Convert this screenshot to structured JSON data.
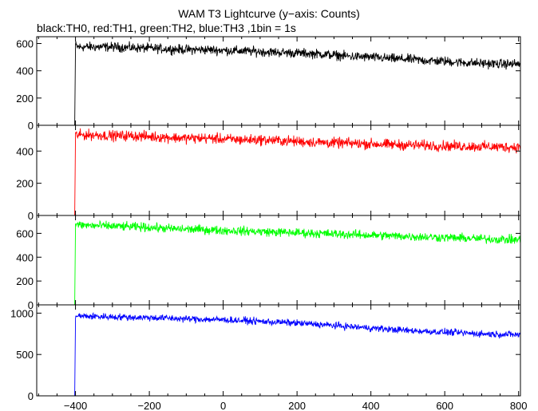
{
  "title": "WAM T3 Lightcurve (y−axis: Counts)",
  "subtitle": "black:TH0, red:TH1, green:TH2, blue:TH3 ,1bin = 1s",
  "chart_data": [
    {
      "type": "line",
      "series": [
        {
          "name": "TH0",
          "color": "#000000",
          "x": [
            -510,
            -402,
            -400,
            -395,
            -350,
            -300,
            -250,
            -200,
            -150,
            -100,
            -50,
            0,
            50,
            100,
            150,
            200,
            250,
            300,
            350,
            400,
            450,
            500,
            550,
            600,
            650,
            700,
            750,
            800
          ],
          "values": [
            0,
            0,
            590,
            575,
            575,
            575,
            570,
            565,
            560,
            555,
            555,
            550,
            545,
            540,
            535,
            530,
            525,
            515,
            505,
            500,
            490,
            485,
            475,
            470,
            460,
            455,
            450,
            450
          ]
        }
      ],
      "xlim": [
        -505,
        805
      ],
      "ylim": [
        0,
        650
      ],
      "yticks": [
        0,
        200,
        400,
        600
      ],
      "noise": 30
    },
    {
      "type": "line",
      "series": [
        {
          "name": "TH1",
          "color": "#ff0000",
          "x": [
            -510,
            -402,
            -400,
            -395,
            -350,
            -300,
            -250,
            -200,
            -150,
            -100,
            -50,
            0,
            50,
            100,
            150,
            200,
            250,
            300,
            350,
            400,
            450,
            500,
            550,
            600,
            650,
            700,
            750,
            800
          ],
          "values": [
            0,
            0,
            500,
            500,
            500,
            495,
            495,
            490,
            485,
            480,
            480,
            475,
            470,
            470,
            465,
            460,
            455,
            450,
            448,
            445,
            440,
            438,
            435,
            432,
            430,
            428,
            425,
            425
          ]
        }
      ],
      "xlim": [
        -505,
        805
      ],
      "ylim": [
        0,
        560
      ],
      "yticks": [
        0,
        200,
        400
      ],
      "noise": 28
    },
    {
      "type": "line",
      "series": [
        {
          "name": "TH2",
          "color": "#00ff00",
          "x": [
            -510,
            -402,
            -400,
            -395,
            -350,
            -300,
            -250,
            -200,
            -150,
            -100,
            -50,
            0,
            50,
            100,
            150,
            200,
            250,
            300,
            350,
            400,
            450,
            500,
            550,
            600,
            650,
            700,
            750,
            800
          ],
          "values": [
            0,
            0,
            680,
            670,
            665,
            660,
            655,
            650,
            640,
            635,
            630,
            625,
            620,
            615,
            610,
            605,
            600,
            595,
            590,
            585,
            580,
            575,
            570,
            565,
            560,
            555,
            550,
            545
          ]
        }
      ],
      "xlim": [
        -505,
        805
      ],
      "ylim": [
        0,
        750
      ],
      "yticks": [
        0,
        200,
        400,
        600
      ],
      "noise": 32
    },
    {
      "type": "line",
      "series": [
        {
          "name": "TH3",
          "color": "#0000ff",
          "x": [
            -510,
            -402,
            -400,
            -395,
            -350,
            -300,
            -250,
            -200,
            -150,
            -100,
            -50,
            0,
            50,
            100,
            150,
            200,
            250,
            300,
            350,
            400,
            450,
            500,
            550,
            600,
            650,
            700,
            750,
            800
          ],
          "values": [
            0,
            0,
            970,
            965,
            960,
            955,
            950,
            945,
            940,
            930,
            925,
            920,
            910,
            900,
            890,
            880,
            865,
            850,
            835,
            820,
            805,
            790,
            780,
            770,
            760,
            750,
            745,
            740
          ]
        }
      ],
      "xlim": [
        -505,
        805
      ],
      "ylim": [
        0,
        1100
      ],
      "yticks": [
        0,
        500,
        1000
      ],
      "noise": 35
    }
  ],
  "xticks": [
    -400,
    -200,
    0,
    200,
    400,
    600,
    800
  ],
  "xtick_labels": [
    "−400",
    "−200",
    "0",
    "200",
    "400",
    "600",
    "800"
  ]
}
